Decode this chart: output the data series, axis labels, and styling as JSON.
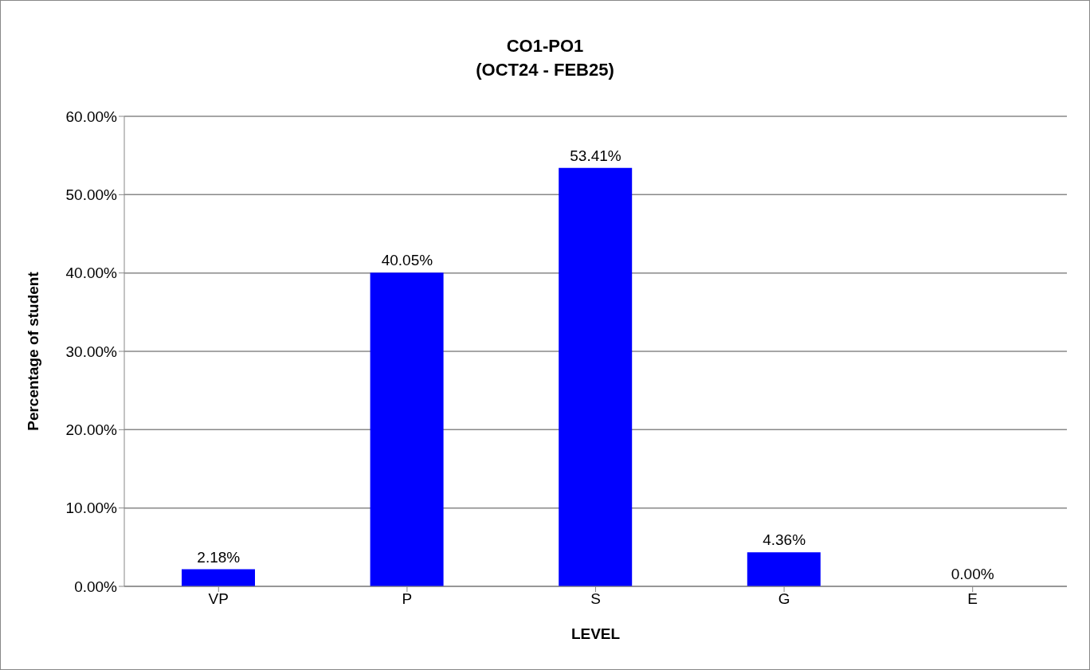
{
  "chart_data": {
    "type": "bar",
    "title": "CO1-PO1",
    "subtitle": "(OCT24 - FEB25)",
    "xlabel": "LEVEL",
    "ylabel": "Percentage of student",
    "categories": [
      "VP",
      "P",
      "S",
      "G",
      "E"
    ],
    "values": [
      2.18,
      40.05,
      53.41,
      4.36,
      0
    ],
    "value_labels": [
      "2.18%",
      "40.05%",
      "53.41%",
      "4.36%",
      "0.00%"
    ],
    "color": "#0000ff",
    "ylim": [
      0,
      60
    ],
    "yticks": [
      {
        "value": 0,
        "label": "0.00%"
      },
      {
        "value": 10,
        "label": "10.00%"
      },
      {
        "value": 20,
        "label": "20.00%"
      },
      {
        "value": 30,
        "label": "30.00%"
      },
      {
        "value": 40,
        "label": "40.00%"
      },
      {
        "value": 50,
        "label": "50.00%"
      },
      {
        "value": 60,
        "label": "60.00%"
      }
    ],
    "grid": "y"
  }
}
